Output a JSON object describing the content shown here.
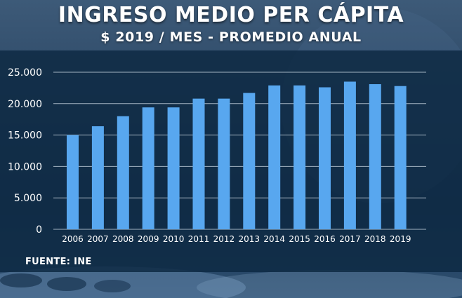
{
  "header": {
    "title": "INGRESO MEDIO PER CÁPITA",
    "subtitle": "$ 2019 / MES - PROMEDIO ANUAL"
  },
  "footer": {
    "source": "FUENTE: INE"
  },
  "colors": {
    "bar": "#58a7ef",
    "grid": "#c7d4e0",
    "text": "#ffffff"
  },
  "chart_data": {
    "type": "bar",
    "title": "INGRESO MEDIO PER CÁPITA",
    "subtitle": "$ 2019 / MES - PROMEDIO ANUAL",
    "categories": [
      "2006",
      "2007",
      "2008",
      "2009",
      "2010",
      "2011",
      "2012",
      "2013",
      "2014",
      "2015",
      "2016",
      "2017",
      "2018",
      "2019"
    ],
    "values": [
      15000,
      16400,
      18000,
      19400,
      19400,
      20800,
      20800,
      21700,
      22900,
      22900,
      22600,
      23500,
      23100,
      22800
    ],
    "yticks": [
      0,
      5000,
      10000,
      15000,
      20000,
      25000
    ],
    "ytick_labels": [
      "0",
      "5.000",
      "10.000",
      "15.000",
      "20.000",
      "25.000"
    ],
    "ylim": [
      0,
      25000
    ],
    "xlabel": "",
    "ylabel": "",
    "grid": true,
    "legend": "none"
  }
}
